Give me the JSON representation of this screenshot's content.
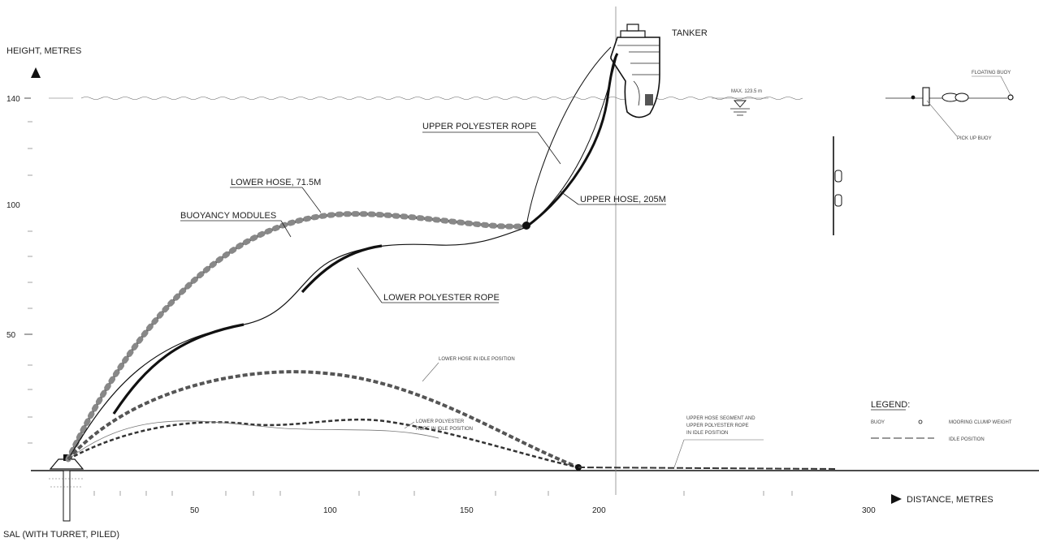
{
  "labels": {
    "height_axis": "HEIGHT, METRES",
    "distance_axis": "DISTANCE, METRES",
    "tanker": "TANKER",
    "floating_buoy": "FLOATING BUOY",
    "pickup_buoy": "PICK UP BUOY",
    "max_depth": "MAX. 123.5 m",
    "upper_polyester_rope": "UPPER POLYESTER ROPE",
    "upper_hose": "UPPER HOSE, 205M",
    "lower_hose": "LOWER HOSE, 71.5M",
    "buoyancy_modules": "BUOYANCY MODULES",
    "lower_polyester_rope": "LOWER POLYESTER ROPE",
    "lower_hose_idle": "LOWER HOSE IN IDLE POSITION",
    "lower_rope_idle_1": "LOWER POLYESTER",
    "lower_rope_idle_2": "ROPE IN IDLE POSITION",
    "upper_idle_1": "UPPER HOSE SEGMENT AND",
    "upper_idle_2": "UPPER POLYESTER ROPE",
    "upper_idle_3": "IN IDLE POSITION",
    "sal": "SAL (WITH TURRET, PILED)",
    "legend_title": "LEGEND:",
    "legend_row1_left": "BUOY",
    "legend_row1_right": "MOORING CLUMP WEIGHT",
    "legend_row2_right": "IDLE POSITION"
  },
  "y_axis_ticks": [
    "140",
    "100",
    "50"
  ],
  "x_axis_ticks": [
    "50",
    "100",
    "150",
    "200",
    "300"
  ]
}
